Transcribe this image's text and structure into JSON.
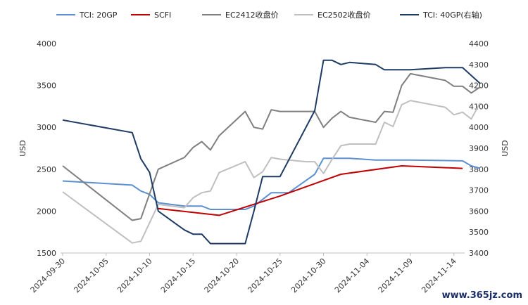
{
  "watermark": "www.365jz.com",
  "chart_data": {
    "type": "line",
    "x_start": "2024-09-30",
    "y_left": {
      "label": "USD",
      "lim": [
        1500,
        4000
      ],
      "ticks": [
        1500,
        2000,
        2500,
        3000,
        3500,
        4000
      ]
    },
    "y_right": {
      "label": "USD",
      "lim": [
        3400,
        4400
      ],
      "ticks": [
        3400,
        3500,
        3600,
        3700,
        3800,
        3900,
        4000,
        4100,
        4200,
        4300,
        4400
      ]
    },
    "x_ticks": [
      "2024-09-30",
      "2024-10-05",
      "2024-10-10",
      "2024-10-15",
      "2024-10-20",
      "2024-10-25",
      "2024-10-30",
      "2024-11-04",
      "2024-11-09",
      "2024-11-14"
    ],
    "legend_position": "top",
    "series": [
      {
        "name": "TCI: 20GP",
        "axis": "left",
        "color": "#5b8fd1",
        "points": [
          [
            "2024-09-30",
            2360
          ],
          [
            "2024-10-08",
            2310
          ],
          [
            "2024-10-09",
            2240
          ],
          [
            "2024-10-10",
            2200
          ],
          [
            "2024-10-11",
            2100
          ],
          [
            "2024-10-14",
            2060
          ],
          [
            "2024-10-16",
            2060
          ],
          [
            "2024-10-17",
            2020
          ],
          [
            "2024-10-21",
            2020
          ],
          [
            "2024-10-22",
            2060
          ],
          [
            "2024-10-24",
            2220
          ],
          [
            "2024-10-26",
            2220
          ],
          [
            "2024-10-29",
            2440
          ],
          [
            "2024-10-30",
            2630
          ],
          [
            "2024-11-02",
            2630
          ],
          [
            "2024-11-05",
            2610
          ],
          [
            "2024-11-09",
            2610
          ],
          [
            "2024-11-15",
            2600
          ],
          [
            "2024-11-16",
            2540
          ],
          [
            "2024-11-17",
            2510
          ]
        ]
      },
      {
        "name": "SCFI",
        "axis": "left",
        "color": "#c00000",
        "points": [
          [
            "2024-10-11",
            2030
          ],
          [
            "2024-10-18",
            1950
          ],
          [
            "2024-10-25",
            2180
          ],
          [
            "2024-11-01",
            2440
          ],
          [
            "2024-11-08",
            2540
          ],
          [
            "2024-11-15",
            2510
          ]
        ]
      },
      {
        "name": "EC2412收盘价",
        "axis": "left",
        "color": "#7f7f7f",
        "points": [
          [
            "2024-09-30",
            2540
          ],
          [
            "2024-10-08",
            1890
          ],
          [
            "2024-10-09",
            1910
          ],
          [
            "2024-10-11",
            2500
          ],
          [
            "2024-10-14",
            2640
          ],
          [
            "2024-10-15",
            2760
          ],
          [
            "2024-10-16",
            2830
          ],
          [
            "2024-10-17",
            2730
          ],
          [
            "2024-10-18",
            2900
          ],
          [
            "2024-10-21",
            3190
          ],
          [
            "2024-10-22",
            3000
          ],
          [
            "2024-10-23",
            2980
          ],
          [
            "2024-10-24",
            3210
          ],
          [
            "2024-10-25",
            3190
          ],
          [
            "2024-10-28",
            3190
          ],
          [
            "2024-10-29",
            3190
          ],
          [
            "2024-10-30",
            3000
          ],
          [
            "2024-10-31",
            3110
          ],
          [
            "2024-11-01",
            3190
          ],
          [
            "2024-11-02",
            3120
          ],
          [
            "2024-11-05",
            3060
          ],
          [
            "2024-11-06",
            3190
          ],
          [
            "2024-11-07",
            3180
          ],
          [
            "2024-11-08",
            3500
          ],
          [
            "2024-11-09",
            3640
          ],
          [
            "2024-11-13",
            3560
          ],
          [
            "2024-11-14",
            3490
          ],
          [
            "2024-11-15",
            3490
          ],
          [
            "2024-11-16",
            3410
          ],
          [
            "2024-11-17",
            3480
          ]
        ]
      },
      {
        "name": "EC2502收盘价",
        "axis": "left",
        "color": "#bfbfbf",
        "points": [
          [
            "2024-09-30",
            2230
          ],
          [
            "2024-10-08",
            1620
          ],
          [
            "2024-10-09",
            1640
          ],
          [
            "2024-10-11",
            2080
          ],
          [
            "2024-10-14",
            2040
          ],
          [
            "2024-10-15",
            2160
          ],
          [
            "2024-10-16",
            2220
          ],
          [
            "2024-10-17",
            2240
          ],
          [
            "2024-10-18",
            2460
          ],
          [
            "2024-10-21",
            2590
          ],
          [
            "2024-10-22",
            2400
          ],
          [
            "2024-10-23",
            2470
          ],
          [
            "2024-10-24",
            2640
          ],
          [
            "2024-10-25",
            2620
          ],
          [
            "2024-10-28",
            2590
          ],
          [
            "2024-10-29",
            2590
          ],
          [
            "2024-10-30",
            2450
          ],
          [
            "2024-10-31",
            2620
          ],
          [
            "2024-11-01",
            2780
          ],
          [
            "2024-11-02",
            2800
          ],
          [
            "2024-11-05",
            2800
          ],
          [
            "2024-11-06",
            3060
          ],
          [
            "2024-11-07",
            3010
          ],
          [
            "2024-11-08",
            3270
          ],
          [
            "2024-11-09",
            3320
          ],
          [
            "2024-11-13",
            3240
          ],
          [
            "2024-11-14",
            3150
          ],
          [
            "2024-11-15",
            3180
          ],
          [
            "2024-11-16",
            3100
          ],
          [
            "2024-11-17",
            3290
          ]
        ]
      },
      {
        "name": "TCI: 40GP(右轴)",
        "axis": "right",
        "color": "#1f3b63",
        "points": [
          [
            "2024-09-30",
            4035
          ],
          [
            "2024-10-08",
            3975
          ],
          [
            "2024-10-09",
            3850
          ],
          [
            "2024-10-10",
            3785
          ],
          [
            "2024-10-11",
            3600
          ],
          [
            "2024-10-14",
            3510
          ],
          [
            "2024-10-15",
            3490
          ],
          [
            "2024-10-16",
            3490
          ],
          [
            "2024-10-17",
            3445
          ],
          [
            "2024-10-21",
            3445
          ],
          [
            "2024-10-22",
            3600
          ],
          [
            "2024-10-23",
            3765
          ],
          [
            "2024-10-25",
            3765
          ],
          [
            "2024-10-29",
            4080
          ],
          [
            "2024-10-30",
            4320
          ],
          [
            "2024-10-31",
            4320
          ],
          [
            "2024-11-01",
            4300
          ],
          [
            "2024-11-02",
            4310
          ],
          [
            "2024-11-05",
            4300
          ],
          [
            "2024-11-06",
            4275
          ],
          [
            "2024-11-09",
            4275
          ],
          [
            "2024-11-13",
            4285
          ],
          [
            "2024-11-15",
            4285
          ],
          [
            "2024-11-17",
            4210
          ]
        ]
      }
    ]
  }
}
